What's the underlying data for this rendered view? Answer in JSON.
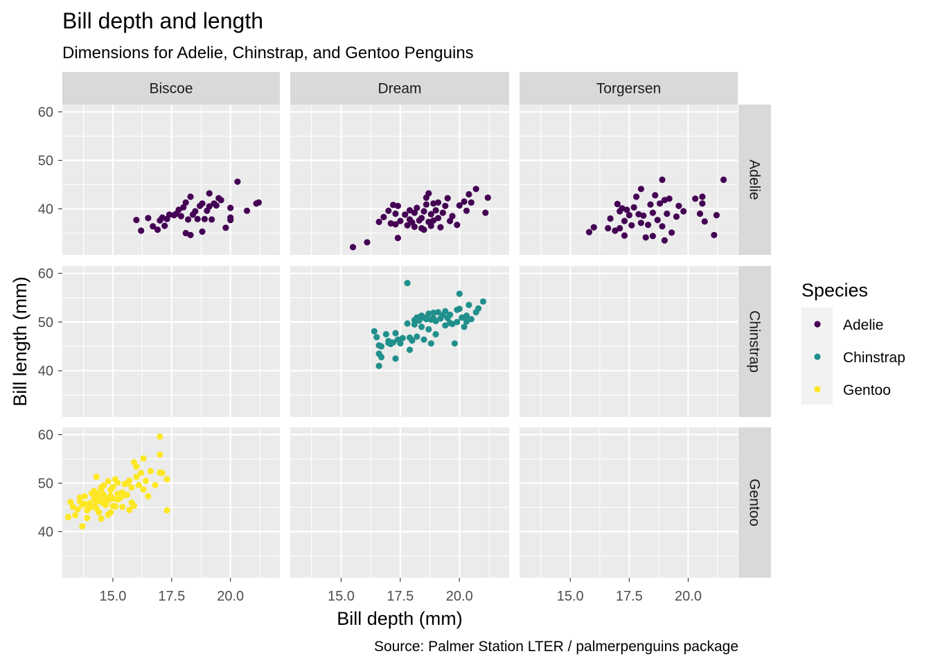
{
  "chart_data": {
    "type": "scatter",
    "title": "Bill depth and length",
    "subtitle": "Dimensions for Adelie, Chinstrap, and Gentoo Penguins",
    "caption": "Source: Palmer Station LTER / palmerpenguins package",
    "xlabel": "Bill depth (mm)",
    "ylabel": "Bill length (mm)",
    "xlim": [
      12.85,
      22.1
    ],
    "ylim": [
      30.5,
      61.5
    ],
    "x_ticks": [
      15.0,
      17.5,
      20.0
    ],
    "x_tick_labels": [
      "15.0",
      "17.5",
      "20.0"
    ],
    "y_ticks": [
      40,
      50,
      60
    ],
    "y_tick_labels": [
      "40",
      "50",
      "60"
    ],
    "grid": true,
    "facet_cols": [
      "Biscoe",
      "Dream",
      "Torgersen"
    ],
    "facet_rows": [
      "Adelie",
      "Chinstrap",
      "Gentoo"
    ],
    "legend": {
      "title": "Species",
      "position": "right",
      "entries": [
        {
          "label": "Adelie",
          "color": "#440154"
        },
        {
          "label": "Chinstrap",
          "color": "#21908C"
        },
        {
          "label": "Gentoo",
          "color": "#FDE725"
        }
      ]
    },
    "series": [
      {
        "name": "Adelie",
        "island": "Biscoe",
        "color": "#440154",
        "points": [
          [
            16.0,
            37.7
          ],
          [
            16.2,
            35.5
          ],
          [
            16.5,
            38.1
          ],
          [
            16.7,
            36.4
          ],
          [
            16.9,
            35.7
          ],
          [
            17.0,
            37.6
          ],
          [
            17.1,
            38.2
          ],
          [
            17.2,
            36.5
          ],
          [
            17.3,
            37.9
          ],
          [
            17.4,
            38.8
          ],
          [
            17.7,
            39.0
          ],
          [
            17.8,
            39.8
          ],
          [
            17.9,
            38.5
          ],
          [
            18.0,
            40.3
          ],
          [
            18.1,
            41.3
          ],
          [
            18.1,
            35.0
          ],
          [
            18.2,
            37.8
          ],
          [
            18.3,
            42.5
          ],
          [
            18.3,
            34.6
          ],
          [
            18.4,
            38.8
          ],
          [
            18.5,
            39.5
          ],
          [
            18.6,
            37.9
          ],
          [
            18.7,
            40.6
          ],
          [
            18.8,
            41.1
          ],
          [
            18.8,
            35.3
          ],
          [
            18.9,
            37.9
          ],
          [
            19.0,
            39.6
          ],
          [
            19.1,
            40.5
          ],
          [
            19.1,
            43.2
          ],
          [
            19.2,
            37.8
          ],
          [
            19.3,
            41.1
          ],
          [
            19.5,
            42.2
          ],
          [
            19.6,
            41.8
          ],
          [
            19.8,
            36.1
          ],
          [
            20.0,
            38.2
          ],
          [
            20.0,
            40.2
          ],
          [
            20.0,
            37.7
          ],
          [
            20.3,
            45.6
          ],
          [
            20.7,
            39.6
          ],
          [
            21.1,
            41.1
          ],
          [
            21.2,
            41.3
          ],
          [
            19.4,
            40.7
          ],
          [
            17.6,
            38.7
          ]
        ]
      },
      {
        "name": "Adelie",
        "island": "Dream",
        "color": "#440154",
        "points": [
          [
            15.5,
            32.1
          ],
          [
            16.1,
            33.1
          ],
          [
            16.6,
            37.3
          ],
          [
            16.8,
            38.3
          ],
          [
            17.0,
            39.6
          ],
          [
            17.1,
            37.0
          ],
          [
            17.2,
            40.8
          ],
          [
            17.3,
            39.0
          ],
          [
            17.3,
            36.8
          ],
          [
            17.4,
            40.6
          ],
          [
            17.4,
            34.0
          ],
          [
            17.5,
            37.5
          ],
          [
            17.7,
            38.8
          ],
          [
            17.8,
            36.6
          ],
          [
            17.9,
            37.8
          ],
          [
            17.9,
            39.7
          ],
          [
            18.0,
            37.2
          ],
          [
            18.1,
            39.2
          ],
          [
            18.1,
            36.3
          ],
          [
            18.2,
            40.2
          ],
          [
            18.3,
            37.6
          ],
          [
            18.4,
            36.0
          ],
          [
            18.4,
            38.1
          ],
          [
            18.5,
            39.5
          ],
          [
            18.5,
            35.7
          ],
          [
            18.6,
            40.9
          ],
          [
            18.6,
            42.3
          ],
          [
            18.7,
            37.3
          ],
          [
            18.7,
            43.2
          ],
          [
            18.8,
            38.9
          ],
          [
            18.8,
            36.5
          ],
          [
            18.9,
            41.1
          ],
          [
            18.9,
            37.6
          ],
          [
            19.0,
            39.7
          ],
          [
            19.1,
            38.1
          ],
          [
            19.1,
            41.3
          ],
          [
            19.2,
            36.2
          ],
          [
            19.3,
            39.2
          ],
          [
            19.4,
            40.6
          ],
          [
            19.5,
            42.2
          ],
          [
            19.6,
            37.5
          ],
          [
            19.7,
            38.5
          ],
          [
            19.9,
            36.7
          ],
          [
            20.0,
            40.7
          ],
          [
            20.2,
            41.5
          ],
          [
            20.3,
            39.6
          ],
          [
            20.4,
            43.0
          ],
          [
            20.5,
            41.3
          ],
          [
            20.7,
            44.1
          ],
          [
            21.2,
            42.3
          ],
          [
            21.1,
            39.2
          ]
        ]
      },
      {
        "name": "Adelie",
        "island": "Torgersen",
        "color": "#440154",
        "points": [
          [
            15.8,
            35.2
          ],
          [
            16.0,
            36.2
          ],
          [
            16.6,
            36.0
          ],
          [
            16.7,
            38.0
          ],
          [
            16.9,
            35.5
          ],
          [
            17.0,
            41.0
          ],
          [
            17.1,
            39.5
          ],
          [
            17.1,
            36.0
          ],
          [
            17.2,
            40.1
          ],
          [
            17.3,
            34.5
          ],
          [
            17.3,
            37.5
          ],
          [
            17.4,
            39.8
          ],
          [
            17.5,
            38.7
          ],
          [
            17.6,
            36.6
          ],
          [
            17.7,
            40.3
          ],
          [
            17.8,
            42.5
          ],
          [
            17.9,
            38.9
          ],
          [
            18.0,
            37.1
          ],
          [
            18.0,
            44.1
          ],
          [
            18.1,
            38.6
          ],
          [
            18.2,
            34.1
          ],
          [
            18.3,
            36.7
          ],
          [
            18.4,
            40.9
          ],
          [
            18.5,
            39.2
          ],
          [
            18.5,
            34.4
          ],
          [
            18.6,
            42.8
          ],
          [
            18.7,
            37.7
          ],
          [
            18.8,
            41.1
          ],
          [
            18.9,
            46.0
          ],
          [
            18.9,
            36.4
          ],
          [
            19.0,
            33.5
          ],
          [
            19.0,
            41.8
          ],
          [
            19.1,
            39.0
          ],
          [
            19.2,
            42.1
          ],
          [
            19.3,
            35.1
          ],
          [
            19.5,
            38.4
          ],
          [
            19.6,
            40.6
          ],
          [
            19.8,
            39.5
          ],
          [
            20.3,
            42.1
          ],
          [
            20.5,
            39.0
          ],
          [
            20.6,
            42.5
          ],
          [
            20.7,
            37.4
          ],
          [
            21.1,
            34.6
          ],
          [
            21.2,
            38.7
          ],
          [
            21.5,
            46.0
          ],
          [
            20.6,
            41.1
          ]
        ]
      },
      {
        "name": "Chinstrap",
        "island": "Dream",
        "color": "#21908C",
        "points": [
          [
            16.4,
            48.1
          ],
          [
            16.5,
            46.9
          ],
          [
            16.6,
            43.5
          ],
          [
            16.6,
            41.0
          ],
          [
            16.7,
            45.0
          ],
          [
            16.7,
            42.8
          ],
          [
            16.9,
            47.5
          ],
          [
            17.0,
            46.1
          ],
          [
            17.1,
            45.5
          ],
          [
            17.2,
            45.8
          ],
          [
            17.3,
            42.5
          ],
          [
            17.3,
            47.7
          ],
          [
            17.5,
            45.6
          ],
          [
            17.6,
            46.7
          ],
          [
            17.8,
            49.7
          ],
          [
            17.8,
            58.0
          ],
          [
            17.9,
            46.8
          ],
          [
            17.9,
            44.3
          ],
          [
            18.0,
            46.2
          ],
          [
            18.1,
            49.5
          ],
          [
            18.2,
            50.9
          ],
          [
            18.2,
            47.0
          ],
          [
            18.3,
            50.3
          ],
          [
            18.4,
            51.3
          ],
          [
            18.4,
            49.0
          ],
          [
            18.5,
            50.9
          ],
          [
            18.5,
            46.4
          ],
          [
            18.6,
            50.6
          ],
          [
            18.7,
            51.7
          ],
          [
            18.7,
            48.5
          ],
          [
            18.8,
            50.5
          ],
          [
            18.8,
            45.6
          ],
          [
            18.9,
            51.9
          ],
          [
            19.0,
            50.2
          ],
          [
            19.0,
            47.5
          ],
          [
            19.1,
            52.0
          ],
          [
            19.2,
            50.7
          ],
          [
            19.3,
            51.4
          ],
          [
            19.4,
            49.3
          ],
          [
            19.5,
            50.8
          ],
          [
            19.6,
            51.5
          ],
          [
            19.7,
            49.6
          ],
          [
            19.8,
            45.6
          ],
          [
            19.9,
            50.0
          ],
          [
            20.0,
            52.7
          ],
          [
            20.1,
            50.9
          ],
          [
            20.2,
            49.0
          ],
          [
            20.3,
            51.3
          ],
          [
            20.4,
            53.5
          ],
          [
            20.5,
            50.6
          ],
          [
            20.7,
            52.0
          ],
          [
            20.8,
            52.8
          ],
          [
            21.0,
            54.2
          ],
          [
            20.0,
            55.8
          ],
          [
            19.6,
            49.8
          ],
          [
            18.9,
            50.8
          ],
          [
            18.3,
            51.0
          ],
          [
            19.4,
            52.2
          ],
          [
            17.4,
            46.4
          ],
          [
            18.1,
            50.4
          ],
          [
            20.3,
            50.1
          ],
          [
            19.9,
            52.5
          ],
          [
            17.0,
            45.7
          ],
          [
            16.6,
            45.2
          ]
        ]
      },
      {
        "name": "Gentoo",
        "island": "Biscoe",
        "color": "#FDE725",
        "points": [
          [
            13.1,
            43.0
          ],
          [
            13.2,
            46.1
          ],
          [
            13.3,
            45.1
          ],
          [
            13.4,
            43.4
          ],
          [
            13.5,
            44.6
          ],
          [
            13.6,
            46.2
          ],
          [
            13.7,
            41.1
          ],
          [
            13.7,
            45.5
          ],
          [
            13.8,
            47.3
          ],
          [
            13.9,
            42.8
          ],
          [
            14.0,
            44.9
          ],
          [
            14.1,
            45.3
          ],
          [
            14.2,
            48.4
          ],
          [
            14.2,
            46.7
          ],
          [
            14.3,
            46.2
          ],
          [
            14.3,
            51.3
          ],
          [
            14.4,
            44.0
          ],
          [
            14.4,
            47.2
          ],
          [
            14.5,
            49.1
          ],
          [
            14.5,
            46.2
          ],
          [
            14.5,
            42.7
          ],
          [
            14.6,
            45.8
          ],
          [
            14.6,
            47.6
          ],
          [
            14.7,
            45.5
          ],
          [
            14.8,
            46.5
          ],
          [
            14.8,
            50.4
          ],
          [
            14.9,
            44.0
          ],
          [
            14.9,
            48.6
          ],
          [
            15.0,
            46.8
          ],
          [
            15.0,
            49.2
          ],
          [
            15.1,
            45.2
          ],
          [
            15.1,
            50.8
          ],
          [
            15.2,
            47.8
          ],
          [
            15.2,
            50.1
          ],
          [
            15.3,
            46.9
          ],
          [
            15.4,
            48.1
          ],
          [
            15.5,
            49.8
          ],
          [
            15.6,
            47.6
          ],
          [
            15.7,
            50.5
          ],
          [
            15.7,
            44.5
          ],
          [
            15.8,
            49.1
          ],
          [
            15.9,
            45.3
          ],
          [
            16.0,
            51.3
          ],
          [
            16.0,
            53.4
          ],
          [
            16.1,
            49.6
          ],
          [
            16.2,
            52.1
          ],
          [
            16.3,
            48.7
          ],
          [
            16.4,
            50.5
          ],
          [
            16.5,
            47.3
          ],
          [
            16.6,
            52.5
          ],
          [
            16.8,
            49.6
          ],
          [
            17.0,
            52.2
          ],
          [
            17.0,
            59.6
          ],
          [
            17.0,
            55.9
          ],
          [
            17.1,
            52.1
          ],
          [
            17.3,
            50.8
          ],
          [
            17.3,
            44.4
          ],
          [
            13.6,
            47.0
          ],
          [
            14.0,
            45.8
          ],
          [
            14.3,
            44.8
          ],
          [
            14.7,
            46.9
          ],
          [
            15.4,
            45.1
          ],
          [
            15.9,
            54.3
          ],
          [
            16.3,
            55.1
          ],
          [
            14.5,
            48.5
          ],
          [
            14.9,
            47.4
          ],
          [
            15.2,
            46.6
          ],
          [
            15.5,
            47.5
          ],
          [
            13.9,
            44.4
          ],
          [
            14.1,
            47.9
          ],
          [
            14.8,
            43.5
          ],
          [
            15.6,
            50.0
          ],
          [
            15.0,
            45.3
          ],
          [
            14.6,
            49.5
          ],
          [
            15.8,
            46.0
          ],
          [
            13.8,
            45.7
          ],
          [
            14.3,
            47.8
          ],
          [
            14.2,
            45.2
          ]
        ]
      }
    ]
  }
}
